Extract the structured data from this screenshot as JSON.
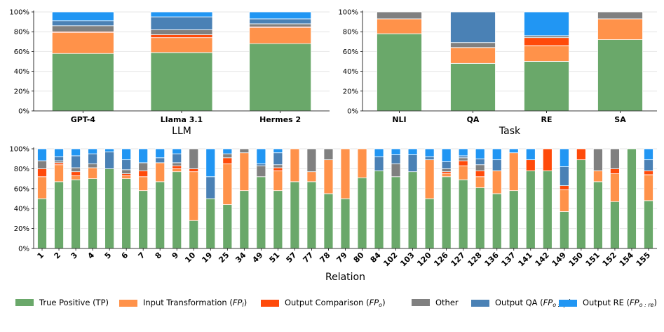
{
  "colors": {
    "tp": "#6aa86a",
    "input": "#ff924a",
    "output_cmp": "#ff4a0a",
    "other": "#808080",
    "qa": "#4a81b5",
    "re": "#2196f3",
    "grid": "#e6e6e6"
  },
  "legend": [
    {
      "key": "tp",
      "prefix": "True Positive (TP)",
      "sym": "",
      "sub": "",
      "suffix": ""
    },
    {
      "key": "input",
      "prefix": "Input Transformation (",
      "sym": "FP",
      "sub": "I",
      "suffix": ")"
    },
    {
      "key": "output_cmp",
      "prefix": "Output Comparison (",
      "sym": "FP",
      "sub": "o",
      "suffix": ")"
    },
    {
      "key": "other",
      "prefix": "Other",
      "sym": "",
      "sub": "",
      "suffix": ""
    },
    {
      "key": "qa",
      "prefix": "Output QA (",
      "sym": "FP",
      "sub": "o : qa",
      "suffix": ")"
    },
    {
      "key": "re",
      "prefix": "Output RE (",
      "sym": "FP",
      "sub": "o : re",
      "suffix": ")"
    }
  ],
  "chart_data": [
    {
      "type": "bar",
      "stacked": true,
      "xlabel": "LLM",
      "ylabel": "",
      "ylim": [
        0,
        100
      ],
      "yticks": [
        "0%",
        "20%",
        "40%",
        "60%",
        "80%",
        "100%"
      ],
      "categories": [
        "GPT-4",
        "Llama 3.1",
        "Hermes 2"
      ],
      "series": [
        {
          "name": "True Positive (TP)",
          "key": "tp",
          "values": [
            58,
            59,
            68
          ]
        },
        {
          "name": "Input Transformation",
          "key": "input",
          "values": [
            21,
            15,
            16
          ]
        },
        {
          "name": "Output Comparison",
          "key": "output_cmp",
          "values": [
            1,
            3,
            1
          ]
        },
        {
          "name": "Other",
          "key": "other",
          "values": [
            6,
            5,
            3
          ]
        },
        {
          "name": "Output QA",
          "key": "qa",
          "values": [
            5,
            13,
            5
          ]
        },
        {
          "name": "Output RE",
          "key": "re",
          "values": [
            9,
            5,
            7
          ]
        }
      ]
    },
    {
      "type": "bar",
      "stacked": true,
      "xlabel": "Task",
      "ylabel": "",
      "ylim": [
        0,
        100
      ],
      "yticks": [
        "0%",
        "20%",
        "40%",
        "60%",
        "80%",
        "100%"
      ],
      "categories": [
        "NLI",
        "QA",
        "RE",
        "SA"
      ],
      "series": [
        {
          "name": "True Positive (TP)",
          "key": "tp",
          "values": [
            78,
            48,
            50,
            72
          ]
        },
        {
          "name": "Input Transformation",
          "key": "input",
          "values": [
            15,
            16,
            16,
            21
          ]
        },
        {
          "name": "Output Comparison",
          "key": "output_cmp",
          "values": [
            0,
            0,
            8,
            0
          ]
        },
        {
          "name": "Other",
          "key": "other",
          "values": [
            7,
            5,
            2,
            7
          ]
        },
        {
          "name": "Output QA",
          "key": "qa",
          "values": [
            0,
            31,
            0,
            0
          ]
        },
        {
          "name": "Output RE",
          "key": "re",
          "values": [
            0,
            0,
            24,
            0
          ]
        }
      ]
    },
    {
      "type": "bar",
      "stacked": true,
      "xlabel": "Relation",
      "ylabel": "",
      "ylim": [
        0,
        100
      ],
      "yticks": [
        "0%",
        "20%",
        "40%",
        "60%",
        "80%",
        "100%"
      ],
      "categories": [
        "1",
        "2",
        "3",
        "4",
        "5",
        "6",
        "7",
        "8",
        "9",
        "10",
        "19",
        "25",
        "34",
        "49",
        "51",
        "57",
        "77",
        "78",
        "79",
        "80",
        "84",
        "102",
        "103",
        "120",
        "126",
        "127",
        "128",
        "136",
        "137",
        "141",
        "142",
        "149",
        "150",
        "151",
        "152",
        "154",
        "155"
      ],
      "series": [
        {
          "name": "True Positive (TP)",
          "key": "tp",
          "values": [
            50,
            67,
            69,
            70,
            80,
            70,
            58,
            67,
            77,
            28,
            50,
            44,
            58,
            72,
            58,
            67,
            67,
            55,
            50,
            71,
            78,
            72,
            77,
            50,
            72,
            69,
            61,
            55,
            58,
            78,
            78,
            37,
            89,
            67,
            47,
            100,
            48
          ]
        },
        {
          "name": "Input Transformation",
          "key": "input",
          "values": [
            22,
            17,
            4,
            11,
            0,
            3,
            14,
            19,
            3,
            49,
            0,
            41,
            38,
            0,
            20,
            33,
            10,
            34,
            50,
            29,
            0,
            0,
            0,
            39,
            3,
            14,
            11,
            23,
            38,
            0,
            0,
            22,
            0,
            11,
            28,
            0,
            26
          ]
        },
        {
          "name": "Output Comparison",
          "key": "output_cmp",
          "values": [
            8,
            2,
            4,
            0,
            0,
            2,
            6,
            0,
            3,
            3,
            0,
            6,
            0,
            0,
            3,
            0,
            0,
            0,
            0,
            0,
            0,
            0,
            0,
            0,
            2,
            5,
            6,
            0,
            0,
            11,
            22,
            4,
            11,
            0,
            5,
            0,
            4
          ]
        },
        {
          "name": "Other",
          "key": "other",
          "values": [
            8,
            2,
            4,
            4,
            0,
            4,
            8,
            0,
            3,
            20,
            0,
            4,
            4,
            11,
            3,
            0,
            23,
            11,
            0,
            0,
            0,
            13,
            0,
            0,
            3,
            3,
            6,
            0,
            0,
            0,
            0,
            0,
            0,
            22,
            20,
            0,
            0
          ]
        },
        {
          "name": "Output QA",
          "key": "qa",
          "values": [
            0,
            4,
            12,
            10,
            17,
            10,
            0,
            5,
            9,
            0,
            22,
            0,
            0,
            2,
            12,
            0,
            0,
            0,
            0,
            0,
            14,
            9,
            17,
            3,
            7,
            2,
            6,
            11,
            0,
            0,
            0,
            19,
            0,
            0,
            0,
            0,
            11
          ]
        },
        {
          "name": "Output RE",
          "key": "re",
          "values": [
            12,
            8,
            7,
            5,
            3,
            11,
            14,
            9,
            5,
            0,
            28,
            5,
            0,
            15,
            4,
            0,
            0,
            0,
            0,
            0,
            8,
            6,
            6,
            8,
            13,
            7,
            10,
            11,
            4,
            11,
            0,
            18,
            0,
            0,
            0,
            0,
            11
          ]
        }
      ]
    }
  ]
}
